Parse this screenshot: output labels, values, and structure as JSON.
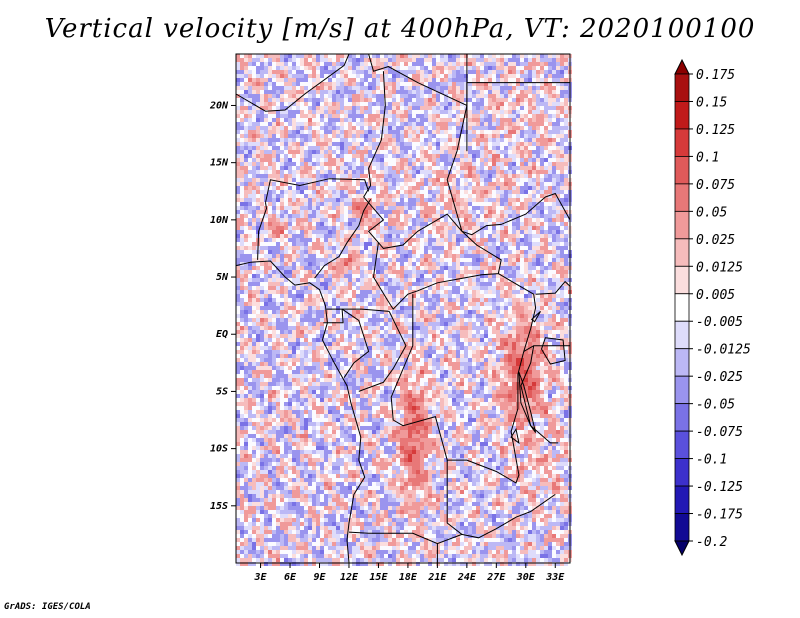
{
  "title": "Vertical velocity [m/s] at 400hPa, VT: 2020100100",
  "credit": "GrADS: IGES/COLA",
  "map": {
    "lat_ticks": [
      "20N",
      "15N",
      "10N",
      "5N",
      "EQ",
      "5S",
      "10S",
      "15S"
    ],
    "lat_values": [
      20,
      15,
      10,
      5,
      0,
      -5,
      -10,
      -15
    ],
    "lon_ticks": [
      "3E",
      "6E",
      "9E",
      "12E",
      "15E",
      "18E",
      "21E",
      "24E",
      "27E",
      "30E",
      "33E"
    ],
    "lon_values": [
      3,
      6,
      9,
      12,
      15,
      18,
      21,
      24,
      27,
      30,
      33
    ],
    "lon_range": [
      0.5,
      34.5
    ],
    "lat_range": [
      -20,
      24.5
    ]
  },
  "colorbar": {
    "labels": [
      "0.175",
      "0.15",
      "0.125",
      "0.1",
      "0.075",
      "0.05",
      "0.025",
      "0.0125",
      "0.005",
      "-0.005",
      "-0.0125",
      "-0.025",
      "-0.05",
      "-0.075",
      "-0.1",
      "-0.125",
      "-0.175",
      "-0.2"
    ],
    "colors": [
      "#8b0000",
      "#a81010",
      "#c01a1a",
      "#d63a3a",
      "#e05a5a",
      "#e87878",
      "#f09a9a",
      "#f6bcbc",
      "#fbdede",
      "#ffffff",
      "#dedcfb",
      "#bcb8f5",
      "#9a94ee",
      "#7a72e6",
      "#5a50dc",
      "#3c30cc",
      "#2218b4",
      "#120a94",
      "#06006a"
    ]
  }
}
